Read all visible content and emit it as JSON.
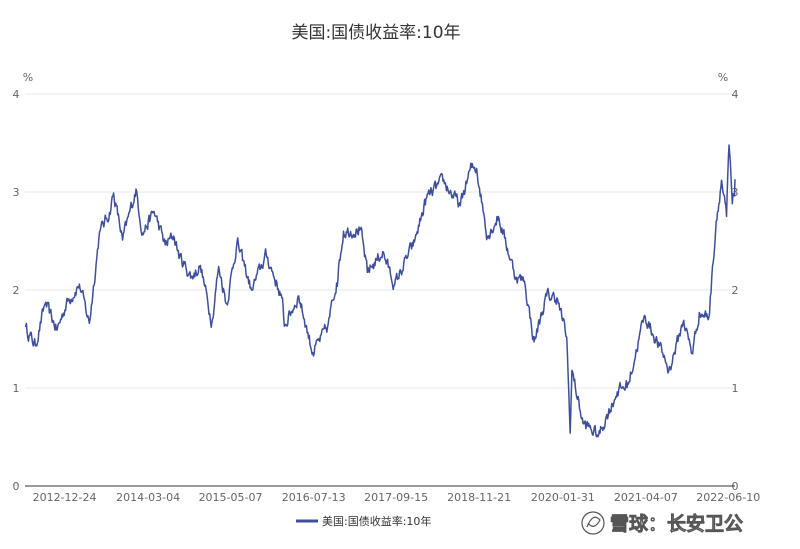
{
  "chart_data": {
    "type": "line",
    "title": "美国:国债收益率:10年",
    "y_unit_left": "%",
    "y_unit_right": "%",
    "ylim": [
      0,
      4
    ],
    "yticks": [
      "0",
      "1",
      "2",
      "3",
      "4"
    ],
    "xlim": [
      "2012-06-01",
      "2022-07-15"
    ],
    "xticks": [
      "2012-12-24",
      "2014-03-04",
      "2015-05-07",
      "2016-07-13",
      "2017-09-15",
      "2018-11-21",
      "2020-01-31",
      "2021-04-07",
      "2022-06-10"
    ],
    "grid": true,
    "legend": "bottom-center",
    "series": [
      {
        "name": "美国:国债收益率:10年",
        "color": "#3d4f9a",
        "points": [
          [
            "2012-06-01",
            1.63
          ],
          [
            "2012-07-25",
            1.43
          ],
          [
            "2012-09-14",
            1.86
          ],
          [
            "2012-11-15",
            1.59
          ],
          [
            "2013-01-02",
            1.86
          ],
          [
            "2013-03-11",
            2.06
          ],
          [
            "2013-05-02",
            1.66
          ],
          [
            "2013-06-24",
            2.59
          ],
          [
            "2013-08-15",
            2.79
          ],
          [
            "2013-09-05",
            2.99
          ],
          [
            "2013-10-22",
            2.51
          ],
          [
            "2013-12-31",
            3.03
          ],
          [
            "2014-02-03",
            2.58
          ],
          [
            "2014-04-04",
            2.8
          ],
          [
            "2014-06-01",
            2.46
          ],
          [
            "2014-07-15",
            2.55
          ],
          [
            "2014-08-15",
            2.34
          ],
          [
            "2014-10-15",
            2.13
          ],
          [
            "2014-12-01",
            2.25
          ],
          [
            "2015-01-30",
            1.67
          ],
          [
            "2015-03-06",
            2.24
          ],
          [
            "2015-04-17",
            1.86
          ],
          [
            "2015-06-10",
            2.49
          ],
          [
            "2015-08-24",
            2.0
          ],
          [
            "2015-11-09",
            2.36
          ],
          [
            "2016-01-29",
            1.92
          ],
          [
            "2016-02-11",
            1.63
          ],
          [
            "2016-04-26",
            1.94
          ],
          [
            "2016-07-08",
            1.36
          ],
          [
            "2016-09-23",
            1.62
          ],
          [
            "2016-11-09",
            2.07
          ],
          [
            "2016-12-15",
            2.6
          ],
          [
            "2017-03-13",
            2.62
          ],
          [
            "2017-04-18",
            2.18
          ],
          [
            "2017-07-07",
            2.39
          ],
          [
            "2017-09-07",
            2.05
          ],
          [
            "2017-12-19",
            2.49
          ],
          [
            "2018-02-21",
            2.94
          ],
          [
            "2018-05-17",
            3.11
          ],
          [
            "2018-08-15",
            2.86
          ],
          [
            "2018-10-05",
            3.23
          ],
          [
            "2018-11-08",
            3.24
          ],
          [
            "2019-01-03",
            2.55
          ],
          [
            "2019-03-01",
            2.75
          ],
          [
            "2019-05-31",
            2.13
          ],
          [
            "2019-07-15",
            2.09
          ],
          [
            "2019-09-03",
            1.47
          ],
          [
            "2019-11-07",
            1.94
          ],
          [
            "2019-12-31",
            1.92
          ],
          [
            "2020-02-20",
            1.52
          ],
          [
            "2020-03-09",
            0.54
          ],
          [
            "2020-03-18",
            1.18
          ],
          [
            "2020-05-15",
            0.64
          ],
          [
            "2020-08-04",
            0.52
          ],
          [
            "2020-11-09",
            0.96
          ],
          [
            "2021-01-06",
            1.04
          ],
          [
            "2021-03-31",
            1.74
          ],
          [
            "2021-07-15",
            1.3
          ],
          [
            "2021-08-04",
            1.17
          ],
          [
            "2021-10-21",
            1.69
          ],
          [
            "2021-12-03",
            1.35
          ],
          [
            "2022-01-10",
            1.77
          ],
          [
            "2022-03-01",
            1.72
          ],
          [
            "2022-04-08",
            2.7
          ],
          [
            "2022-05-06",
            3.12
          ],
          [
            "2022-06-01",
            2.75
          ],
          [
            "2022-06-14",
            3.48
          ],
          [
            "2022-07-01",
            2.88
          ],
          [
            "2022-07-12",
            2.96
          ],
          [
            "2022-07-15",
            3.13
          ]
        ]
      }
    ]
  },
  "legend": {
    "label": "美国:国债收益率:10年"
  },
  "watermark": {
    "text": "雪球：长安卫公"
  }
}
